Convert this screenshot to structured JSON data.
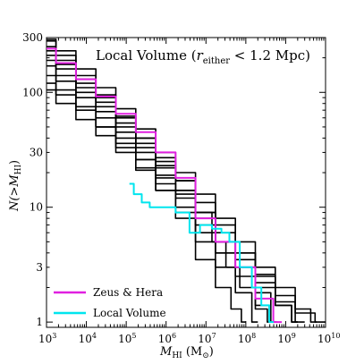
{
  "chart_data": {
    "type": "line",
    "title": "Local Volume (",
    "title_math": {
      "symbol": "r",
      "subscript": "either",
      "relation": " < 1.2 Mpc)"
    },
    "xlabel": {
      "symbol": "M",
      "subscript": "HI",
      "unit_open": " (M",
      "unit_symbol": "⊙",
      "unit_close": ")"
    },
    "ylabel": {
      "prefix": "N(>",
      "symbol": "M",
      "subscript": "HI",
      "suffix": ")"
    },
    "xscale": "log",
    "yscale": "log",
    "xlim": [
      1000,
      10000000000
    ],
    "ylim": [
      0.9,
      300
    ],
    "x_ticks": [
      {
        "base": "10",
        "exp": "3",
        "value": 1000
      },
      {
        "base": "10",
        "exp": "4",
        "value": 10000
      },
      {
        "base": "10",
        "exp": "5",
        "value": 100000
      },
      {
        "base": "10",
        "exp": "6",
        "value": 1000000
      },
      {
        "base": "10",
        "exp": "7",
        "value": 10000000
      },
      {
        "base": "10",
        "exp": "8",
        "value": 100000000
      },
      {
        "base": "10",
        "exp": "9",
        "value": 1000000000
      },
      {
        "base": "10",
        "exp": "10",
        "value": 10000000000
      }
    ],
    "y_ticks": [
      {
        "label": "1",
        "value": 1
      },
      {
        "label": "3",
        "value": 3
      },
      {
        "label": "10",
        "value": 10
      },
      {
        "label": "30",
        "value": 30
      },
      {
        "label": "100",
        "value": 100
      },
      {
        "label": "300",
        "value": 300
      }
    ],
    "legend": {
      "placement": "bottom-left",
      "entries": [
        {
          "label": "Zeus & Hera",
          "color": "#e020e0"
        },
        {
          "label": "Local Volume",
          "color": "#00e5ee"
        }
      ]
    },
    "series": [
      {
        "kind": "simulation",
        "color": "#000000",
        "x": [
          1000,
          3000,
          10000,
          30000,
          100000,
          300000,
          1000000,
          3000000,
          10000000,
          30000000,
          100000000,
          300000000,
          1000000000,
          3000000000,
          6000000000
        ],
        "y": [
          290,
          230,
          160,
          110,
          72,
          48,
          30,
          20,
          13,
          8,
          5,
          3,
          2,
          1.3,
          1
        ]
      },
      {
        "kind": "simulation",
        "color": "#000000",
        "x": [
          1000,
          3000,
          10000,
          30000,
          100000,
          300000,
          1000000,
          3000000,
          10000000,
          30000000,
          100000000,
          300000000,
          1000000000,
          3000000000
        ],
        "y": [
          250,
          190,
          130,
          90,
          60,
          40,
          25,
          17,
          11,
          7,
          4,
          2.5,
          1.5,
          1
        ]
      },
      {
        "kind": "simulation",
        "color": "#000000",
        "x": [
          1000,
          3000,
          10000,
          30000,
          100000,
          300000,
          1000000,
          3000000,
          10000000,
          30000000,
          100000000,
          300000000,
          600000000
        ],
        "y": [
          210,
          160,
          110,
          75,
          50,
          33,
          22,
          14,
          9,
          5,
          3,
          1.8,
          1
        ]
      },
      {
        "kind": "simulation",
        "color": "#000000",
        "x": [
          1000,
          3000,
          10000,
          30000,
          100000,
          300000,
          1000000,
          3000000,
          10000000,
          30000000,
          100000000,
          300000000,
          1000000000,
          2000000000
        ],
        "y": [
          190,
          140,
          100,
          68,
          45,
          30,
          19,
          12,
          8,
          5,
          3.5,
          2.2,
          1.4,
          1
        ]
      },
      {
        "kind": "simulation",
        "color": "#000000",
        "x": [
          1000,
          3000,
          10000,
          30000,
          100000,
          300000,
          1000000,
          3000000,
          10000000,
          30000000,
          100000000,
          200000000
        ],
        "y": [
          170,
          125,
          90,
          60,
          40,
          26,
          16,
          10,
          5,
          3,
          1.8,
          1
        ]
      },
      {
        "kind": "simulation",
        "color": "#000000",
        "x": [
          1000,
          3000,
          10000,
          30000,
          100000,
          300000,
          1000000,
          3000000,
          10000000,
          30000000,
          60000000,
          100000000
        ],
        "y": [
          140,
          105,
          75,
          50,
          33,
          22,
          14,
          8,
          3.5,
          2,
          1.3,
          1
        ]
      },
      {
        "kind": "simulation",
        "color": "#000000",
        "x": [
          1000,
          3000,
          10000,
          30000,
          100000,
          300000,
          1000000,
          3000000,
          10000000,
          30000000,
          100000000,
          300000000,
          1000000000,
          3000000000,
          10000000000
        ],
        "y": [
          120,
          95,
          70,
          50,
          36,
          26,
          18,
          13,
          9,
          6,
          4,
          2.6,
          1.7,
          1.2,
          1
        ]
      },
      {
        "kind": "simulation",
        "color": "#000000",
        "x": [
          1000,
          3000,
          10000,
          30000,
          100000,
          300000,
          1000000,
          3000000,
          10000000,
          30000000,
          100000000,
          300000000,
          1000000000,
          2000000000
        ],
        "y": [
          105,
          80,
          58,
          42,
          30,
          21,
          14,
          9,
          6,
          4,
          3,
          2,
          1.4,
          1
        ]
      },
      {
        "kind": "simulation",
        "color": "#000000",
        "x": [
          1000,
          3000,
          10000,
          30000,
          100000,
          300000,
          1000000,
          3000000,
          10000000,
          20000000,
          50000000,
          100000000,
          300000000,
          400000000
        ],
        "y": [
          280,
          210,
          140,
          95,
          62,
          40,
          27,
          17,
          9,
          5,
          3,
          2,
          1.3,
          1
        ]
      },
      {
        "kind": "simulation",
        "color": "#000000",
        "x": [
          1000,
          3000,
          10000,
          30000,
          100000,
          300000,
          1000000,
          3000000,
          10000000,
          30000000,
          100000000,
          300000000,
          500000000
        ],
        "y": [
          230,
          175,
          120,
          82,
          54,
          36,
          23,
          14,
          7,
          4,
          2.5,
          1.4,
          1
        ]
      },
      {
        "name": "Zeus & Hera",
        "kind": "simulation-highlight",
        "color": "#e020e0",
        "x": [
          1000,
          3000,
          10000,
          30000,
          100000,
          300000,
          1000000,
          3000000,
          10000000,
          30000000,
          100000000,
          300000000,
          800000000
        ],
        "y": [
          240,
          180,
          130,
          92,
          65,
          45,
          30,
          18,
          8,
          5,
          3,
          1.6,
          1
        ]
      },
      {
        "name": "Local Volume",
        "kind": "observed",
        "color": "#00e5ee",
        "x": [
          120000,
          200000,
          300000,
          500000,
          1000000,
          3000000,
          5000000,
          10000000,
          20000000,
          30000000,
          50000000,
          100000000,
          200000000,
          300000000,
          500000000
        ],
        "y": [
          16,
          13,
          11,
          10,
          10,
          9,
          6,
          7,
          6.5,
          6,
          5,
          3,
          2,
          1.4,
          1
        ]
      }
    ]
  }
}
